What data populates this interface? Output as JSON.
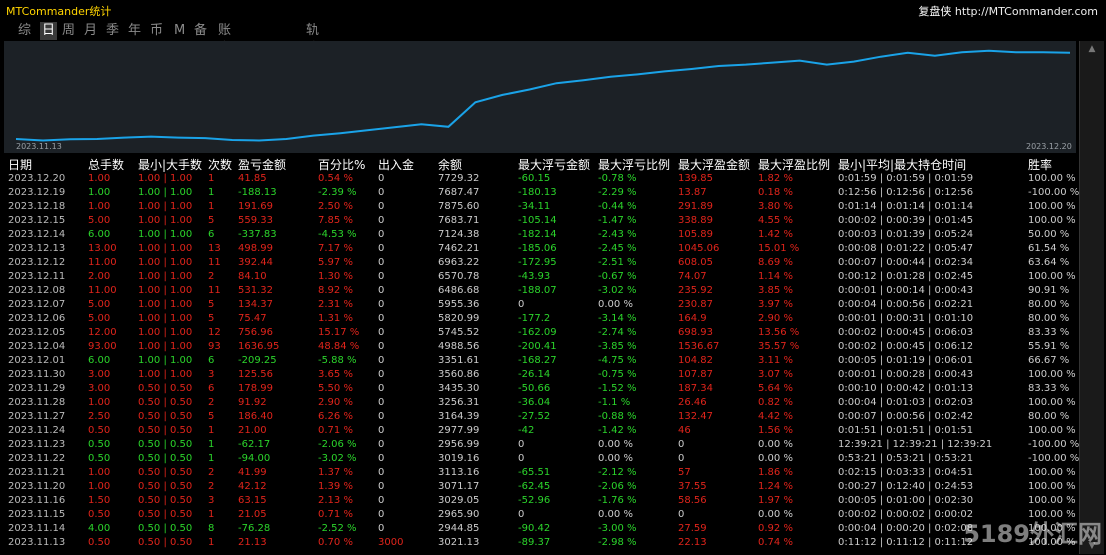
{
  "window": {
    "title": "MTCommander统计",
    "brand_label": "复盘侠",
    "brand_url": "http://MTCommander.com"
  },
  "tabs": [
    {
      "label": "综",
      "active": false
    },
    {
      "label": "日",
      "active": true
    },
    {
      "label": "周",
      "active": false
    },
    {
      "label": "月",
      "active": false
    },
    {
      "label": "季",
      "active": false
    },
    {
      "label": "年",
      "active": false
    },
    {
      "label": "币",
      "active": false
    },
    {
      "label": "M",
      "active": false
    },
    {
      "label": "备",
      "active": false
    },
    {
      "label": "账户",
      "active": false
    },
    {
      "label": "轨迹",
      "active": false
    }
  ],
  "chart": {
    "start_label": "2023.11.13",
    "end_label": "2023.12.20",
    "line_color": "#1aa3e8",
    "points": [
      2.0,
      0.5,
      1.8,
      2.0,
      3.5,
      4.5,
      3.5,
      3.0,
      1.0,
      0.5,
      2.0,
      5.5,
      8.0,
      11.0,
      14.0,
      17.0,
      14.5,
      39.5,
      47.0,
      52.5,
      59.0,
      62.0,
      65.5,
      68.0,
      71.0,
      73.5,
      76.5,
      78.0,
      80.0,
      82.0,
      78.0,
      81.0,
      86.0,
      90.0,
      87.0,
      90.5,
      92.0,
      90.5,
      90.5,
      90.0
    ]
  },
  "table": {
    "headers": [
      "日期",
      "总手数",
      "最小|大手数",
      "次数",
      "盈亏金额",
      "百分比%",
      "出入金",
      "余额",
      "最大浮亏金额",
      "最大浮亏比例",
      "最大浮盈金额",
      "最大浮盈比例",
      "最小|平均|最大持仓时间",
      "胜率"
    ],
    "rows": [
      [
        "2023.12.20",
        "1.00",
        "1.00 | 1.00",
        "1",
        "41.85",
        "0.54 %",
        "0",
        "7729.32",
        "-60.15",
        "-0.78 %",
        "139.85",
        "1.82 %",
        "0:01:59 | 0:01:59 | 0:01:59",
        "100.00 %"
      ],
      [
        "2023.12.19",
        "1.00",
        "1.00 | 1.00",
        "1",
        "-188.13",
        "-2.39 %",
        "0",
        "7687.47",
        "-180.13",
        "-2.29 %",
        "13.87",
        "0.18 %",
        "0:12:56 | 0:12:56 | 0:12:56",
        "-100.00 %"
      ],
      [
        "2023.12.18",
        "1.00",
        "1.00 | 1.00",
        "1",
        "191.69",
        "2.50 %",
        "0",
        "7875.60",
        "-34.11",
        "-0.44 %",
        "291.89",
        "3.80 %",
        "0:01:14 | 0:01:14 | 0:01:14",
        "100.00 %"
      ],
      [
        "2023.12.15",
        "5.00",
        "1.00 | 1.00",
        "5",
        "559.33",
        "7.85 %",
        "0",
        "7683.71",
        "-105.14",
        "-1.47 %",
        "338.89",
        "4.55 %",
        "0:00:02 | 0:00:39 | 0:01:45",
        "100.00 %"
      ],
      [
        "2023.12.14",
        "6.00",
        "1.00 | 1.00",
        "6",
        "-337.83",
        "-4.53 %",
        "0",
        "7124.38",
        "-182.14",
        "-2.43 %",
        "105.89",
        "1.42 %",
        "0:00:03 | 0:01:39 | 0:05:24",
        "50.00 %"
      ],
      [
        "2023.12.13",
        "13.00",
        "1.00 | 1.00",
        "13",
        "498.99",
        "7.17 %",
        "0",
        "7462.21",
        "-185.06",
        "-2.45 %",
        "1045.06",
        "15.01 %",
        "0:00:08 | 0:01:22 | 0:05:47",
        "61.54 %"
      ],
      [
        "2023.12.12",
        "11.00",
        "1.00 | 1.00",
        "11",
        "392.44",
        "5.97 %",
        "0",
        "6963.22",
        "-172.95",
        "-2.51 %",
        "608.05",
        "8.69 %",
        "0:00:07 | 0:00:44 | 0:02:34",
        "63.64 %"
      ],
      [
        "2023.12.11",
        "2.00",
        "1.00 | 1.00",
        "2",
        "84.10",
        "1.30 %",
        "0",
        "6570.78",
        "-43.93",
        "-0.67 %",
        "74.07",
        "1.14 %",
        "0:00:12 | 0:01:28 | 0:02:45",
        "100.00 %"
      ],
      [
        "2023.12.08",
        "11.00",
        "1.00 | 1.00",
        "11",
        "531.32",
        "8.92 %",
        "0",
        "6486.68",
        "-188.07",
        "-3.02 %",
        "235.92",
        "3.85 %",
        "0:00:01 | 0:00:14 | 0:00:43",
        "90.91 %"
      ],
      [
        "2023.12.07",
        "5.00",
        "1.00 | 1.00",
        "5",
        "134.37",
        "2.31 %",
        "0",
        "5955.36",
        "0",
        "0.00 %",
        "230.87",
        "3.97 %",
        "0:00:04 | 0:00:56 | 0:02:21",
        "80.00 %"
      ],
      [
        "2023.12.06",
        "5.00",
        "1.00 | 1.00",
        "5",
        "75.47",
        "1.31 %",
        "0",
        "5820.99",
        "-177.2",
        "-3.14 %",
        "164.9",
        "2.90 %",
        "0:00:01 | 0:00:31 | 0:01:10",
        "80.00 %"
      ],
      [
        "2023.12.05",
        "12.00",
        "1.00 | 1.00",
        "12",
        "756.96",
        "15.17 %",
        "0",
        "5745.52",
        "-162.09",
        "-2.74 %",
        "698.93",
        "13.56 %",
        "0:00:02 | 0:00:45 | 0:06:03",
        "83.33 %"
      ],
      [
        "2023.12.04",
        "93.00",
        "1.00 | 1.00",
        "93",
        "1636.95",
        "48.84 %",
        "0",
        "4988.56",
        "-200.41",
        "-3.85 %",
        "1536.67",
        "35.57 %",
        "0:00:02 | 0:00:45 | 0:06:12",
        "55.91 %"
      ],
      [
        "2023.12.01",
        "6.00",
        "1.00 | 1.00",
        "6",
        "-209.25",
        "-5.88 %",
        "0",
        "3351.61",
        "-168.27",
        "-4.75 %",
        "104.82",
        "3.11 %",
        "0:00:05 | 0:01:19 | 0:06:01",
        "66.67 %"
      ],
      [
        "2023.11.30",
        "3.00",
        "1.00 | 1.00",
        "3",
        "125.56",
        "3.65 %",
        "0",
        "3560.86",
        "-26.14",
        "-0.75 %",
        "107.87",
        "3.07 %",
        "0:00:01 | 0:00:28 | 0:00:43",
        "100.00 %"
      ],
      [
        "2023.11.29",
        "3.00",
        "0.50 | 0.50",
        "6",
        "178.99",
        "5.50 %",
        "0",
        "3435.30",
        "-50.66",
        "-1.52 %",
        "187.34",
        "5.64 %",
        "0:00:10 | 0:00:42 | 0:01:13",
        "83.33 %"
      ],
      [
        "2023.11.28",
        "1.00",
        "0.50 | 0.50",
        "2",
        "91.92",
        "2.90 %",
        "0",
        "3256.31",
        "-36.04",
        "-1.1 %",
        "26.46",
        "0.82 %",
        "0:00:04 | 0:01:03 | 0:02:03",
        "100.00 %"
      ],
      [
        "2023.11.27",
        "2.50",
        "0.50 | 0.50",
        "5",
        "186.40",
        "6.26 %",
        "0",
        "3164.39",
        "-27.52",
        "-0.88 %",
        "132.47",
        "4.42 %",
        "0:00:07 | 0:00:56 | 0:02:42",
        "80.00 %"
      ],
      [
        "2023.11.24",
        "0.50",
        "0.50 | 0.50",
        "1",
        "21.00",
        "0.71 %",
        "0",
        "2977.99",
        "-42",
        "-1.42 %",
        "46",
        "1.56 %",
        "0:01:51 | 0:01:51 | 0:01:51",
        "100.00 %"
      ],
      [
        "2023.11.23",
        "0.50",
        "0.50 | 0.50",
        "1",
        "-62.17",
        "-2.06 %",
        "0",
        "2956.99",
        "0",
        "0.00 %",
        "0",
        "0.00 %",
        "12:39:21 | 12:39:21 | 12:39:21",
        "-100.00 %"
      ],
      [
        "2023.11.22",
        "0.50",
        "0.50 | 0.50",
        "1",
        "-94.00",
        "-3.02 %",
        "0",
        "3019.16",
        "0",
        "0.00 %",
        "0",
        "0.00 %",
        "0:53:21 | 0:53:21 | 0:53:21",
        "-100.00 %"
      ],
      [
        "2023.11.21",
        "1.00",
        "0.50 | 0.50",
        "2",
        "41.99",
        "1.37 %",
        "0",
        "3113.16",
        "-65.51",
        "-2.12 %",
        "57",
        "1.86 %",
        "0:02:15 | 0:03:33 | 0:04:51",
        "100.00 %"
      ],
      [
        "2023.11.20",
        "1.00",
        "0.50 | 0.50",
        "2",
        "42.12",
        "1.39 %",
        "0",
        "3071.17",
        "-62.45",
        "-2.06 %",
        "37.55",
        "1.24 %",
        "0:00:27 | 0:12:40 | 0:24:53",
        "100.00 %"
      ],
      [
        "2023.11.16",
        "1.50",
        "0.50 | 0.50",
        "3",
        "63.15",
        "2.13 %",
        "0",
        "3029.05",
        "-52.96",
        "-1.76 %",
        "58.56",
        "1.97 %",
        "0:00:05 | 0:01:00 | 0:02:30",
        "100.00 %"
      ],
      [
        "2023.11.15",
        "0.50",
        "0.50 | 0.50",
        "1",
        "21.05",
        "0.71 %",
        "0",
        "2965.90",
        "0",
        "0.00 %",
        "0",
        "0.00 %",
        "0:00:02 | 0:00:02 | 0:00:02",
        "100.00 %"
      ],
      [
        "2023.11.14",
        "4.00",
        "0.50 | 0.50",
        "8",
        "-76.28",
        "-2.52 %",
        "0",
        "2944.85",
        "-90.42",
        "-3.00 %",
        "27.59",
        "0.92 %",
        "0:00:04 | 0:00:20 | 0:02:08",
        "100.00 %"
      ],
      [
        "2023.11.13",
        "0.50",
        "0.50 | 0.50",
        "1",
        "21.13",
        "0.70 %",
        "3000",
        "3021.13",
        "-89.37",
        "-2.98 %",
        "22.13",
        "0.74 %",
        "0:11:12 | 0:11:12 | 0:11:12",
        "100.00 %"
      ]
    ]
  },
  "watermark": "5189外汇网",
  "colors": {
    "profit": "#e0241b",
    "loss": "#2bd42b",
    "accent_title": "#ffd400",
    "chart_bg": "#1c2126"
  }
}
